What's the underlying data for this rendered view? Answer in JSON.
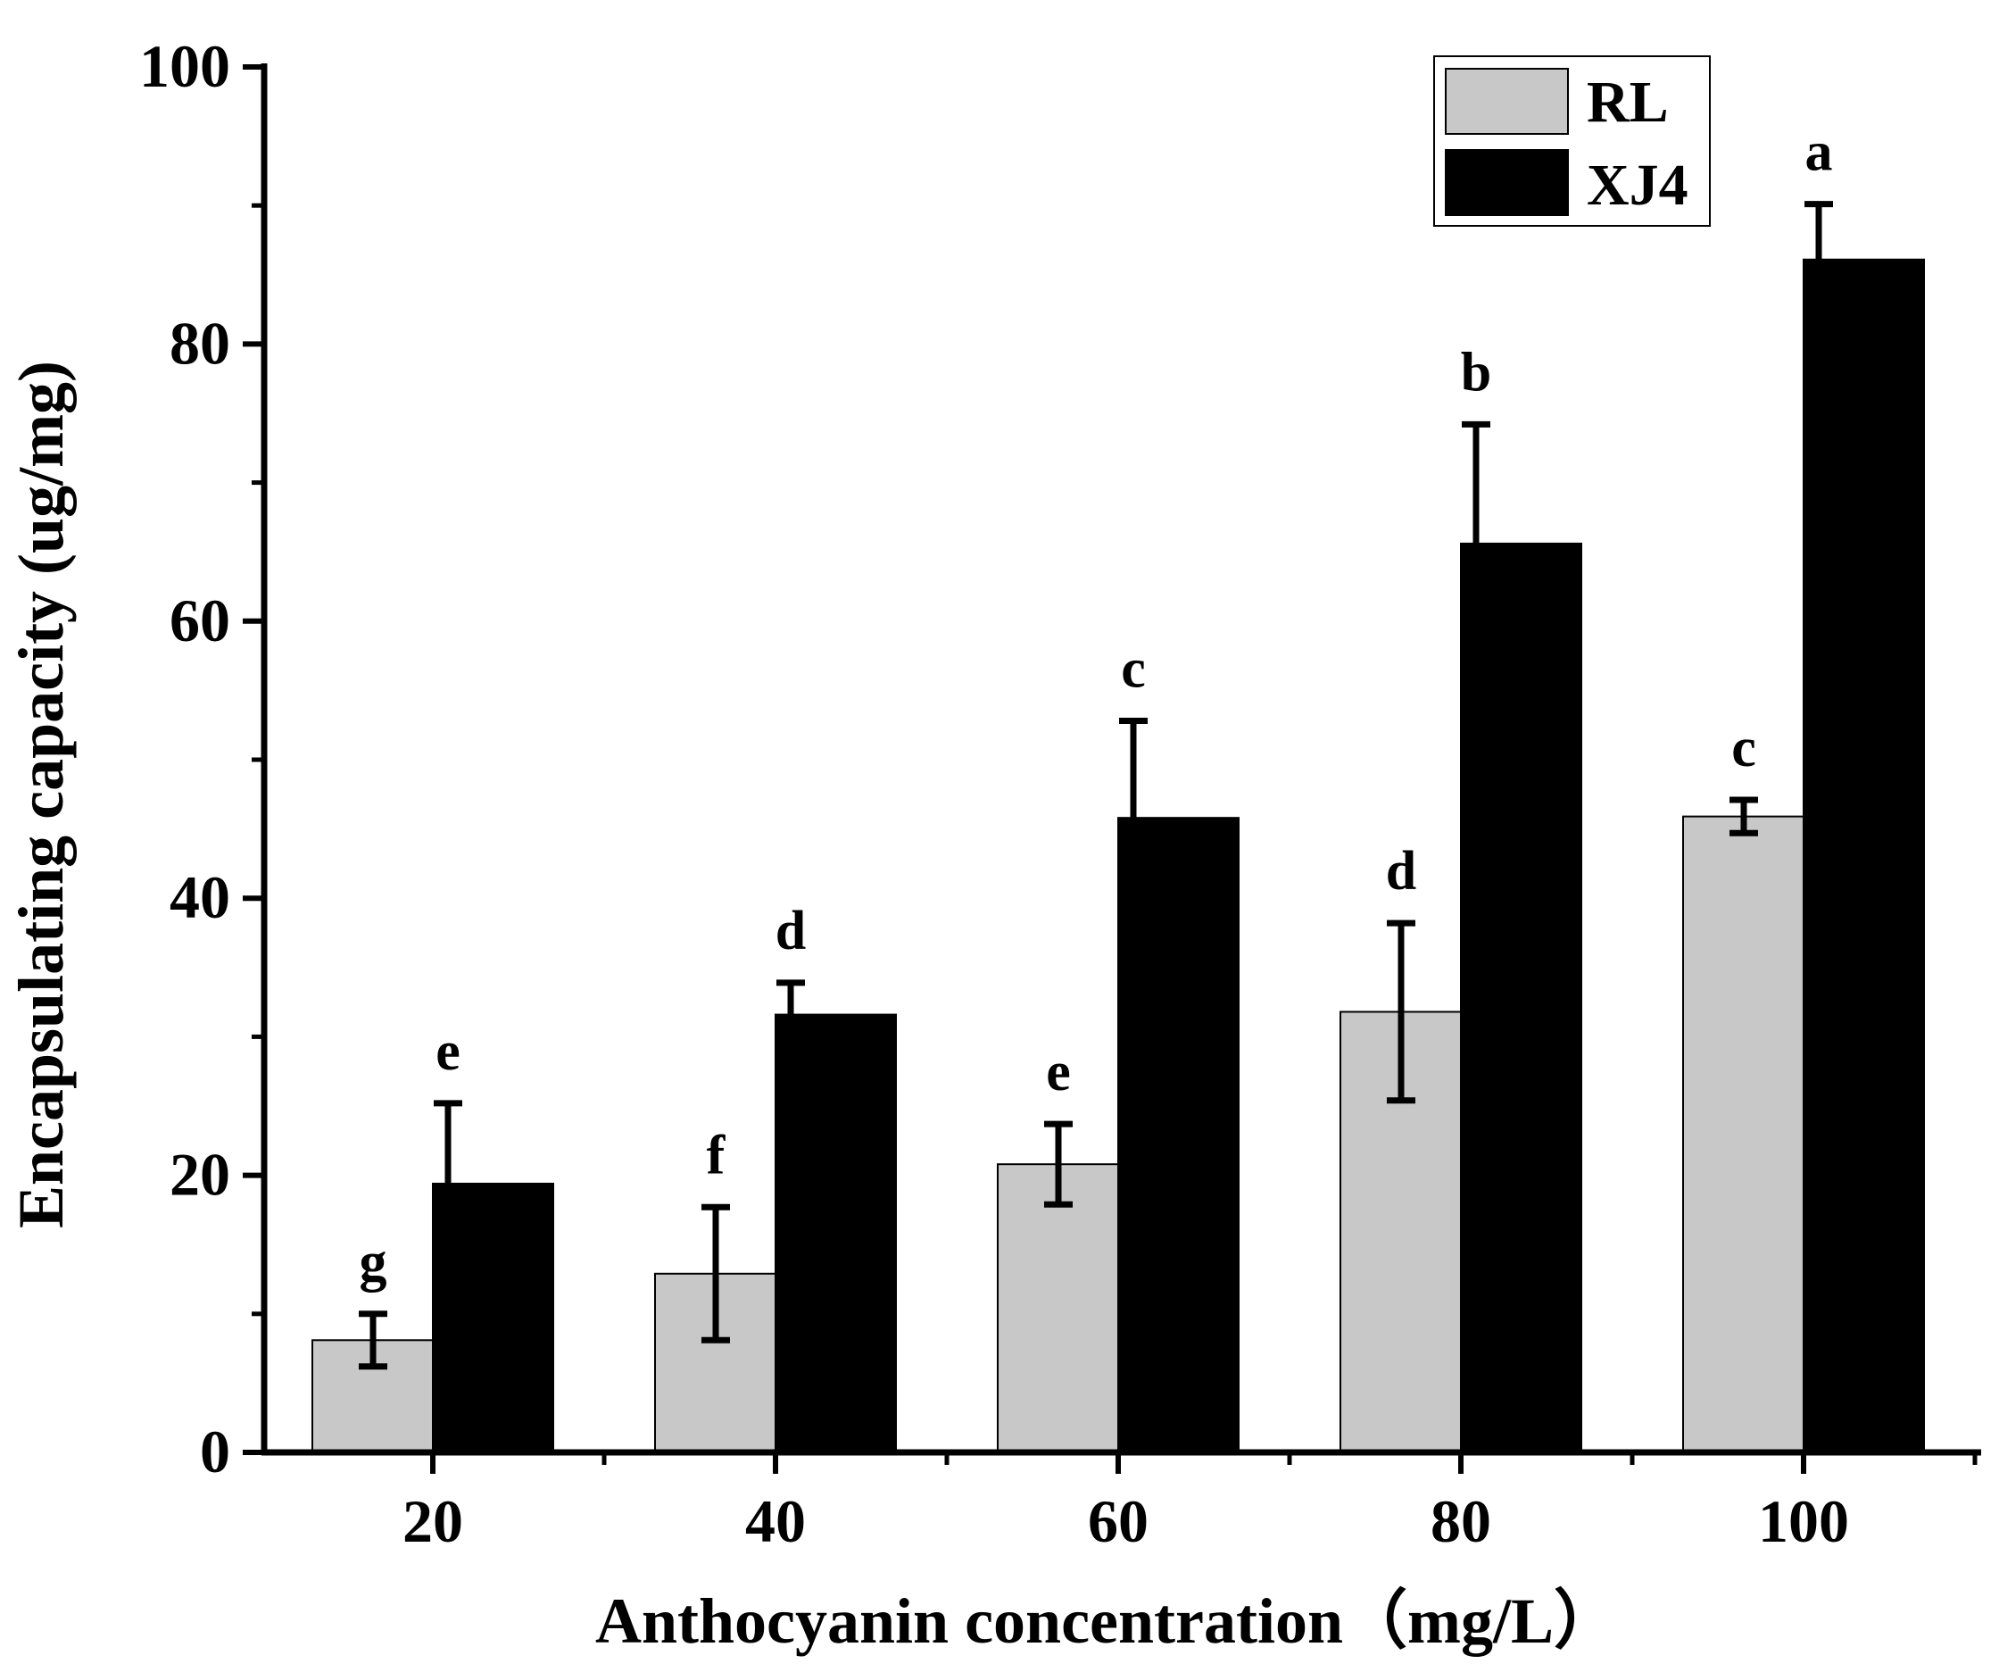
{
  "chart_data": {
    "type": "bar",
    "title": "",
    "xlabel": "Anthocyanin concentration（mg/L）",
    "ylabel": "Encapsulating capacity (ug/mg)",
    "categories": [
      "20",
      "40",
      "60",
      "80",
      "100"
    ],
    "ylim": [
      0,
      100
    ],
    "yticks": [
      0,
      20,
      40,
      60,
      80,
      100
    ],
    "grid": false,
    "legend_position": "top-right",
    "series": [
      {
        "name": "RL",
        "color": "#c8c8c8",
        "values": [
          8.1,
          12.9,
          20.8,
          31.8,
          45.9
        ],
        "errors": [
          1.9,
          4.8,
          2.9,
          6.4,
          1.2
        ],
        "letters": [
          "g",
          "f",
          "e",
          "d",
          "c"
        ]
      },
      {
        "name": "XJ4",
        "color": "#000000",
        "values": [
          19.4,
          31.6,
          45.8,
          65.6,
          86.1
        ],
        "errors": [
          5.8,
          2.3,
          7.0,
          8.6,
          4.0
        ],
        "letters": [
          "e",
          "d",
          "c",
          "b",
          "a"
        ]
      }
    ]
  }
}
